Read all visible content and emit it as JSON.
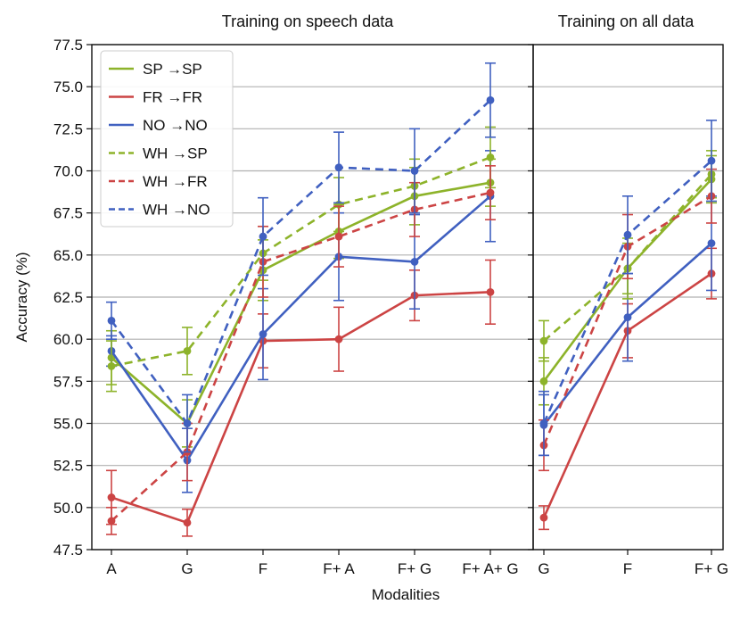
{
  "chart_data": [
    {
      "type": "line",
      "title": "Training on speech data",
      "xlabel": "",
      "ylabel": "Accuracy (%)",
      "categories": [
        "A",
        "G",
        "F",
        "F+ A",
        "F+ G",
        "F+ A+ G"
      ],
      "ylim": [
        47.5,
        77.5
      ],
      "yticks": [
        "47.5",
        "50.0",
        "52.5",
        "55.0",
        "57.5",
        "60.0",
        "62.5",
        "65.0",
        "67.5",
        "70.0",
        "72.5",
        "75.0",
        "77.5"
      ],
      "grid": "horizontal",
      "legend": "top-left",
      "series": [
        {
          "name": "SP →SP",
          "color": "#8db32a",
          "dash": "solid",
          "values": [
            58.9,
            55.0,
            64.1,
            66.4,
            68.5,
            69.3
          ],
          "err": [
            1.6,
            1.4,
            1.8,
            1.6,
            1.7,
            1.4
          ]
        },
        {
          "name": "FR →FR",
          "color": "#cc4444",
          "dash": "solid",
          "values": [
            50.6,
            49.1,
            59.9,
            60.0,
            62.6,
            62.8
          ],
          "err": [
            1.6,
            0.8,
            1.6,
            1.9,
            1.5,
            1.9
          ]
        },
        {
          "name": "NO →NO",
          "color": "#4060c0",
          "dash": "solid",
          "values": [
            59.3,
            52.8,
            60.3,
            64.9,
            64.6,
            68.5
          ],
          "err": [
            0.9,
            1.9,
            2.7,
            2.6,
            2.8,
            2.7
          ]
        },
        {
          "name": "WH →SP",
          "color": "#8db32a",
          "dash": "dashed",
          "values": [
            58.4,
            59.3,
            65.1,
            68.0,
            69.1,
            70.8
          ],
          "err": [
            1.5,
            1.4,
            1.6,
            1.6,
            1.6,
            1.8
          ]
        },
        {
          "name": "WH →FR",
          "color": "#cc4444",
          "dash": "dashed",
          "values": [
            49.2,
            53.3,
            64.6,
            66.1,
            67.7,
            68.7
          ],
          "err": [
            0.8,
            1.7,
            2.1,
            1.8,
            1.6,
            1.6
          ]
        },
        {
          "name": "WH →NO",
          "color": "#4060c0",
          "dash": "dashed",
          "values": [
            61.1,
            55.0,
            66.1,
            70.2,
            70.0,
            74.2
          ],
          "err": [
            1.1,
            1.7,
            2.3,
            2.1,
            2.5,
            2.2
          ]
        }
      ]
    },
    {
      "type": "line",
      "title": "Training on all data",
      "xlabel": "",
      "ylabel": "",
      "categories": [
        "G",
        "F",
        "F+ G"
      ],
      "ylim": [
        47.5,
        77.5
      ],
      "grid": "horizontal",
      "series": [
        {
          "name": "",
          "color": "#8db32a",
          "dash": "solid",
          "values": [
            57.5,
            64.2,
            69.5
          ],
          "err": [
            1.4,
            1.5,
            1.4
          ]
        },
        {
          "name": "",
          "color": "#cc4444",
          "dash": "solid",
          "values": [
            49.4,
            60.5,
            63.9
          ],
          "err": [
            0.7,
            1.6,
            1.5
          ]
        },
        {
          "name": "",
          "color": "#4060c0",
          "dash": "solid",
          "values": [
            54.9,
            61.3,
            65.7
          ],
          "err": [
            1.8,
            2.6,
            2.8
          ]
        },
        {
          "name": "",
          "color": "#8db32a",
          "dash": "dashed",
          "values": [
            59.9,
            64.2,
            69.8
          ],
          "err": [
            1.2,
            1.8,
            1.4
          ]
        },
        {
          "name": "",
          "color": "#cc4444",
          "dash": "dashed",
          "values": [
            53.7,
            65.5,
            68.5
          ],
          "err": [
            1.5,
            1.9,
            1.6
          ]
        },
        {
          "name": "",
          "color": "#4060c0",
          "dash": "dashed",
          "values": [
            55.0,
            66.2,
            70.6
          ],
          "err": [
            1.9,
            2.3,
            2.4
          ]
        }
      ]
    }
  ],
  "shared_xlabel": "Modalities"
}
